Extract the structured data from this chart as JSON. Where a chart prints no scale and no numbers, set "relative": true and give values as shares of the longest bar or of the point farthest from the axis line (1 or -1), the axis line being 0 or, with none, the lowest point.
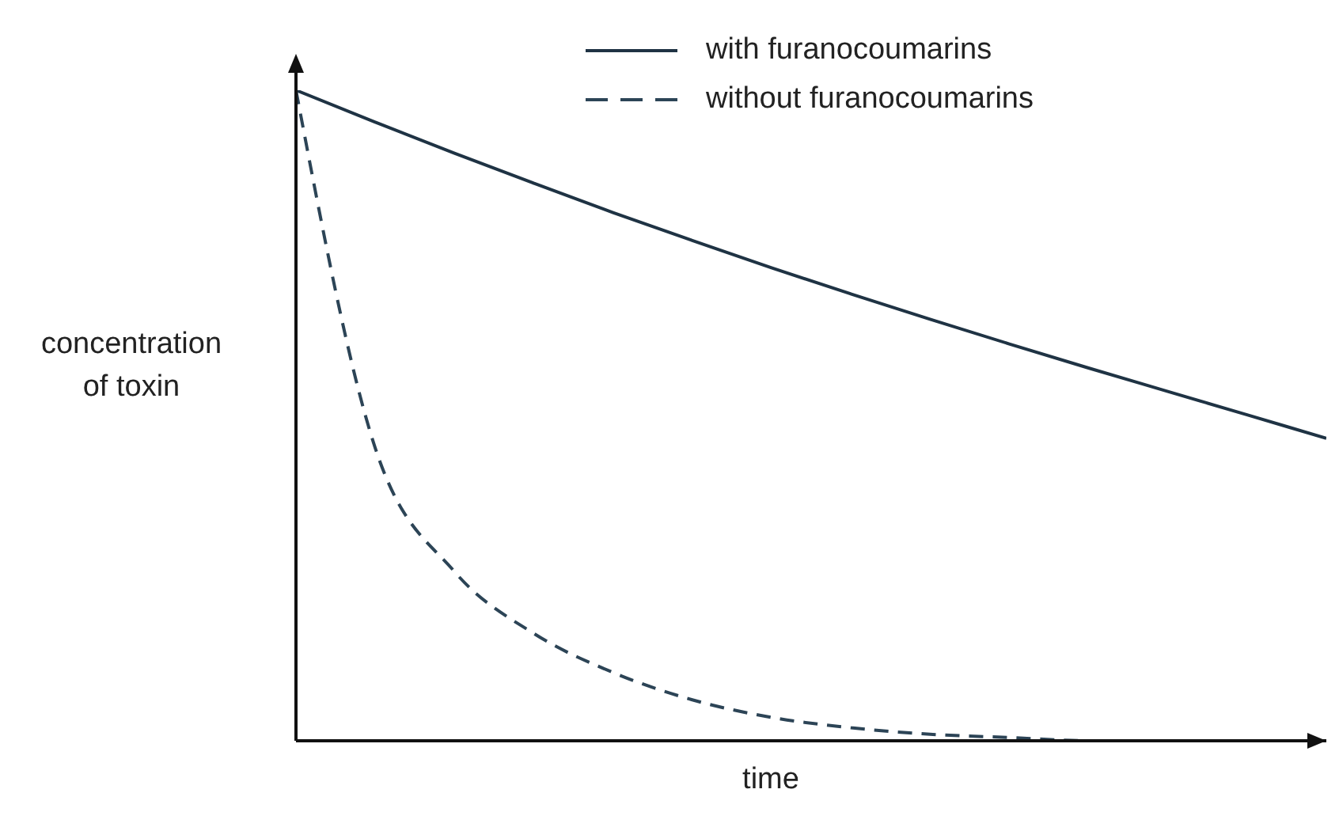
{
  "chart_data": {
    "type": "line",
    "relative": true,
    "xlabel": "time",
    "ylabel": "concentration of toxin",
    "legend": "top right",
    "marker": "none",
    "categories": [
      null,
      null,
      null,
      null,
      null,
      null,
      null,
      null,
      null,
      null,
      null,
      null,
      null,
      null
    ],
    "series": [
      {
        "name": "with furanocoumarins",
        "color": "#1f3344",
        "line_style": "solid",
        "values": [
          1,
          0.951,
          0.903,
          0.857,
          0.812,
          0.769,
          0.727,
          0.687,
          0.648,
          0.61,
          0.573,
          0.537,
          0.501,
          0.465
        ]
      },
      {
        "name": "without furanocoumarins",
        "color": "#2c4456",
        "line_style": "dashed",
        "values": [
          1,
          0.45,
          0.26,
          0.165,
          0.105,
          0.063,
          0.036,
          0.02,
          0.01,
          0.005,
          0,
          0,
          0,
          0
        ]
      }
    ]
  }
}
